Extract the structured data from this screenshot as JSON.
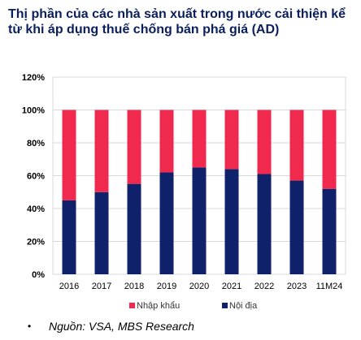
{
  "title": "Thị phần của các nhà sản xuất trong nước cải thiện kể từ khi áp dụng thuế chống bán phá giá (AD)",
  "source": "Nguồn: VSA, MBS Research",
  "colors": {
    "nhap_khau": "#f0294e",
    "noi_dia": "#10216b",
    "grid": "#d9d9d9"
  },
  "chart_data": {
    "type": "bar",
    "stacked": true,
    "categories": [
      "2016",
      "2017",
      "2018",
      "2019",
      "2020",
      "2021",
      "2022",
      "2023",
      "11M24"
    ],
    "series": [
      {
        "name": "Nội địa",
        "values": [
          45,
          50,
          55,
          62,
          65,
          64,
          61,
          57,
          52
        ]
      },
      {
        "name": "Nhập khẩu",
        "values": [
          55,
          50,
          45,
          38,
          35,
          36,
          39,
          43,
          48
        ]
      }
    ],
    "yticks": [
      "0%",
      "20%",
      "40%",
      "60%",
      "80%",
      "100%",
      "120%"
    ],
    "ylim": [
      0,
      120
    ],
    "grid": true,
    "legend": [
      "Nhập khẩu",
      "Nội địa"
    ],
    "legend_position": "bottom"
  }
}
